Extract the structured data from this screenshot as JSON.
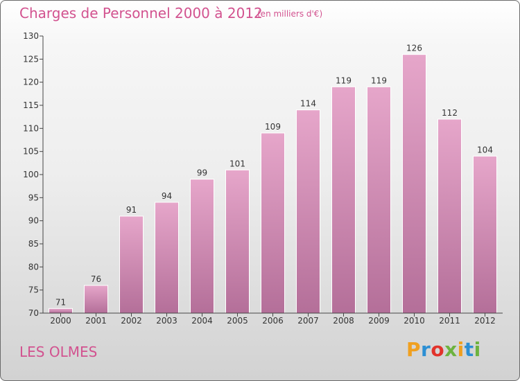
{
  "header": {
    "title": "Charges de Personnel 2000 à 2012",
    "unit_note": "(en milliers d'€)"
  },
  "footer": {
    "commune": "LES OLMES",
    "logo": "Proxiti"
  },
  "colors": {
    "accent": "#d2528f",
    "bar_top": "#e6a6ca",
    "bar_bottom": "#b46f99",
    "logo_letters": [
      "#f0a020",
      "#2c8fd4",
      "#e2332b",
      "#6db33f",
      "#f0a020",
      "#2c8fd4",
      "#6db33f"
    ]
  },
  "chart_data": {
    "type": "bar",
    "title": "Charges de Personnel 2000 à 2012",
    "subtitle": "(en milliers d'€)",
    "xlabel": "",
    "ylabel": "",
    "categories": [
      "2000",
      "2001",
      "2002",
      "2003",
      "2004",
      "2005",
      "2006",
      "2007",
      "2008",
      "2009",
      "2010",
      "2011",
      "2012"
    ],
    "values": [
      71,
      76,
      91,
      94,
      99,
      101,
      109,
      114,
      119,
      119,
      126,
      112,
      104
    ],
    "ylim": [
      70,
      130
    ],
    "yticks": [
      70,
      75,
      80,
      85,
      90,
      95,
      100,
      105,
      110,
      115,
      120,
      125,
      130
    ],
    "data_labels": true,
    "grid": false,
    "legend": "none"
  }
}
